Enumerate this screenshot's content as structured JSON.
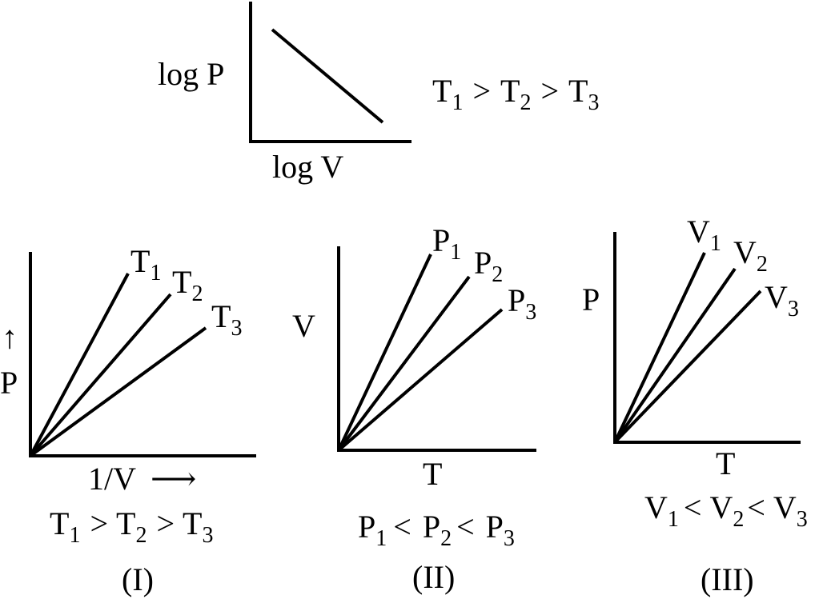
{
  "top": {
    "ylabel": "log P",
    "xlabel": "log V",
    "relation": {
      "a": "T",
      "a_sub": "1",
      "op1": ">",
      "b": "T",
      "b_sub": "2",
      "op2": ">",
      "c": "T",
      "c_sub": "3"
    }
  },
  "graph1": {
    "ylabel": "P",
    "yarrow": "↑",
    "xlabel": "1/V",
    "xarrow": "⟶",
    "lines": [
      {
        "main": "T",
        "sub": "1"
      },
      {
        "main": "T",
        "sub": "2"
      },
      {
        "main": "T",
        "sub": "3"
      }
    ],
    "relation": {
      "a": "T",
      "a_sub": "1",
      "op1": ">",
      "b": "T",
      "b_sub": "2",
      "op2": ">",
      "c": "T",
      "c_sub": "3"
    },
    "caption": "(I)"
  },
  "graph2": {
    "ylabel": "V",
    "xlabel": "T",
    "lines": [
      {
        "main": "P",
        "sub": "1"
      },
      {
        "main": "P",
        "sub": "2"
      },
      {
        "main": "P",
        "sub": "3"
      }
    ],
    "relation": {
      "a": "P",
      "a_sub": "1",
      "op1": "<",
      "b": "P",
      "b_sub": "2",
      "op2": "<",
      "c": "P",
      "c_sub": "3"
    },
    "caption": "(II)"
  },
  "graph3": {
    "ylabel": "P",
    "xlabel": "T",
    "lines": [
      {
        "main": "V",
        "sub": "1"
      },
      {
        "main": "V",
        "sub": "2"
      },
      {
        "main": "V",
        "sub": "3"
      }
    ],
    "relation": {
      "a": "V",
      "a_sub": "1",
      "op1": "<",
      "b": "V",
      "b_sub": "2",
      "op2": "<",
      "c": "V",
      "c_sub": "3"
    },
    "caption": "(III)"
  }
}
